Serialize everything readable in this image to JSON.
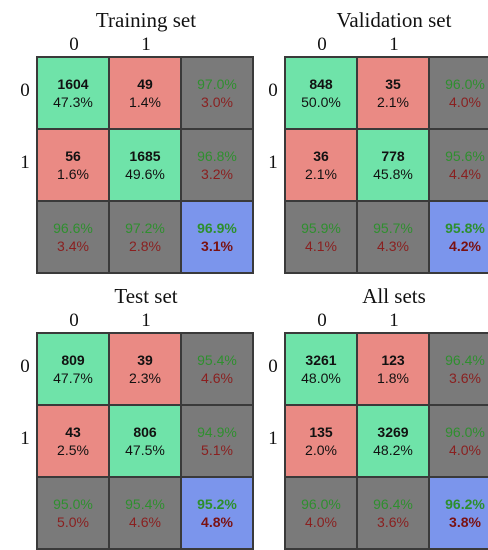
{
  "chart_data": [
    {
      "type": "heatmap",
      "title": "Training set",
      "col_labels": [
        "0",
        "1"
      ],
      "row_labels": [
        "0",
        "1"
      ],
      "cells": [
        [
          {
            "kind": "correct",
            "l1": "1604",
            "l2": "47.3%"
          },
          {
            "kind": "wrong",
            "l1": "49",
            "l2": "1.4%"
          },
          {
            "kind": "summary",
            "l1": "97.0%",
            "l2": "3.0%"
          }
        ],
        [
          {
            "kind": "wrong",
            "l1": "56",
            "l2": "1.6%"
          },
          {
            "kind": "correct",
            "l1": "1685",
            "l2": "49.6%"
          },
          {
            "kind": "summary",
            "l1": "96.8%",
            "l2": "3.2%"
          }
        ],
        [
          {
            "kind": "summary",
            "l1": "96.6%",
            "l2": "3.4%"
          },
          {
            "kind": "summary",
            "l1": "97.2%",
            "l2": "2.8%"
          },
          {
            "kind": "overall",
            "l1": "96.9%",
            "l2": "3.1%"
          }
        ]
      ]
    },
    {
      "type": "heatmap",
      "title": "Validation set",
      "col_labels": [
        "0",
        "1"
      ],
      "row_labels": [
        "0",
        "1"
      ],
      "cells": [
        [
          {
            "kind": "correct",
            "l1": "848",
            "l2": "50.0%"
          },
          {
            "kind": "wrong",
            "l1": "35",
            "l2": "2.1%"
          },
          {
            "kind": "summary",
            "l1": "96.0%",
            "l2": "4.0%"
          }
        ],
        [
          {
            "kind": "wrong",
            "l1": "36",
            "l2": "2.1%"
          },
          {
            "kind": "correct",
            "l1": "778",
            "l2": "45.8%"
          },
          {
            "kind": "summary",
            "l1": "95.6%",
            "l2": "4.4%"
          }
        ],
        [
          {
            "kind": "summary",
            "l1": "95.9%",
            "l2": "4.1%"
          },
          {
            "kind": "summary",
            "l1": "95.7%",
            "l2": "4.3%"
          },
          {
            "kind": "overall",
            "l1": "95.8%",
            "l2": "4.2%"
          }
        ]
      ]
    },
    {
      "type": "heatmap",
      "title": "Test set",
      "col_labels": [
        "0",
        "1"
      ],
      "row_labels": [
        "0",
        "1"
      ],
      "cells": [
        [
          {
            "kind": "correct",
            "l1": "809",
            "l2": "47.7%"
          },
          {
            "kind": "wrong",
            "l1": "39",
            "l2": "2.3%"
          },
          {
            "kind": "summary",
            "l1": "95.4%",
            "l2": "4.6%"
          }
        ],
        [
          {
            "kind": "wrong",
            "l1": "43",
            "l2": "2.5%"
          },
          {
            "kind": "correct",
            "l1": "806",
            "l2": "47.5%"
          },
          {
            "kind": "summary",
            "l1": "94.9%",
            "l2": "5.1%"
          }
        ],
        [
          {
            "kind": "summary",
            "l1": "95.0%",
            "l2": "5.0%"
          },
          {
            "kind": "summary",
            "l1": "95.4%",
            "l2": "4.6%"
          },
          {
            "kind": "overall",
            "l1": "95.2%",
            "l2": "4.8%"
          }
        ]
      ]
    },
    {
      "type": "heatmap",
      "title": "All sets",
      "col_labels": [
        "0",
        "1"
      ],
      "row_labels": [
        "0",
        "1"
      ],
      "cells": [
        [
          {
            "kind": "correct",
            "l1": "3261",
            "l2": "48.0%"
          },
          {
            "kind": "wrong",
            "l1": "123",
            "l2": "1.8%"
          },
          {
            "kind": "summary",
            "l1": "96.4%",
            "l2": "3.6%"
          }
        ],
        [
          {
            "kind": "wrong",
            "l1": "135",
            "l2": "2.0%"
          },
          {
            "kind": "correct",
            "l1": "3269",
            "l2": "48.2%"
          },
          {
            "kind": "summary",
            "l1": "96.0%",
            "l2": "4.0%"
          }
        ],
        [
          {
            "kind": "summary",
            "l1": "96.0%",
            "l2": "4.0%"
          },
          {
            "kind": "summary",
            "l1": "96.4%",
            "l2": "3.6%"
          },
          {
            "kind": "overall",
            "l1": "96.2%",
            "l2": "3.8%"
          }
        ]
      ]
    }
  ],
  "colors": {
    "correct": "#6fe3a9",
    "wrong": "#ea8a84",
    "summary": "#7a7a7a",
    "overall": "#7b95ec",
    "summary_text_top": "#2f8f2f",
    "summary_text_bottom": "#8a1f1f"
  }
}
